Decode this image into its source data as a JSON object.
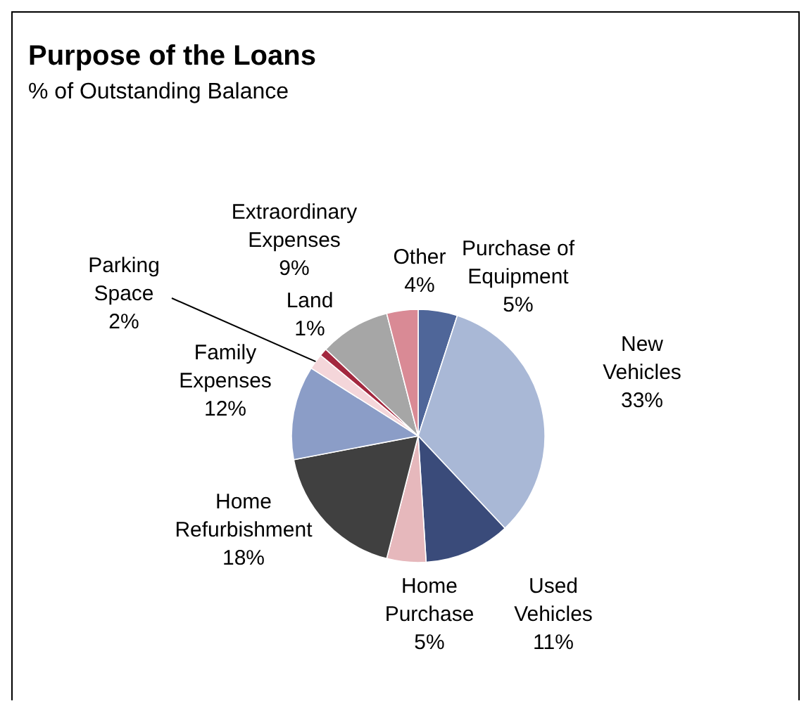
{
  "chart_data": {
    "type": "pie",
    "title": "Purpose of the Loans",
    "subtitle": "% of Outstanding Balance",
    "categories": [
      "Purchase of Equipment",
      "New Vehicles",
      "Used Vehicles",
      "Home Purchase",
      "Home Refurbishment",
      "Family Expenses",
      "Parking Space",
      "Land",
      "Extraordinary Expenses",
      "Other"
    ],
    "values": [
      5,
      33,
      11,
      5,
      18,
      12,
      2,
      1,
      9,
      4
    ],
    "colors": [
      "#4f6699",
      "#a9b8d6",
      "#3a4b7a",
      "#e6b8bc",
      "#404040",
      "#8b9dc7",
      "#f4d6da",
      "#a3283f",
      "#a6a6a6",
      "#d98a95"
    ],
    "value_labels": [
      "5%",
      "33%",
      "11%",
      "5%",
      "18%",
      "12%",
      "2%",
      "1%",
      "9%",
      "4%"
    ]
  }
}
